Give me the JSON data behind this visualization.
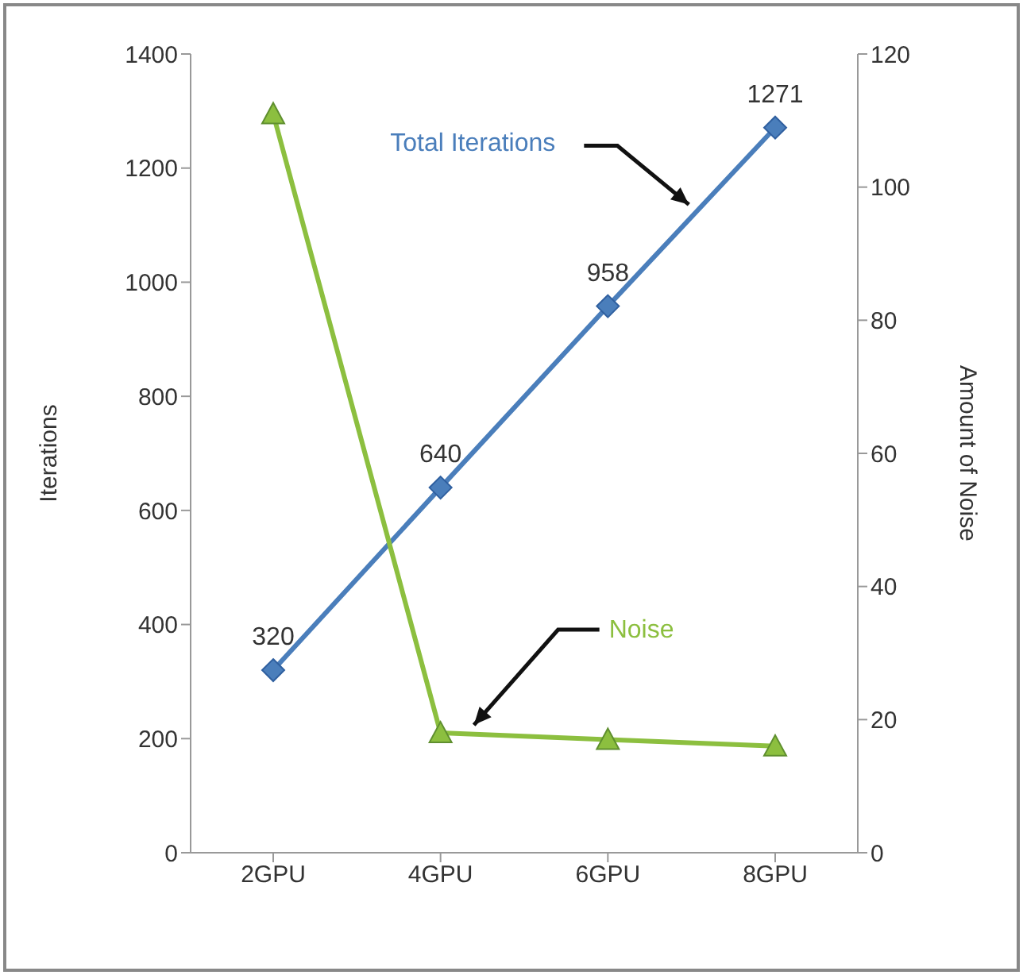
{
  "chart_data": {
    "type": "line",
    "categories": [
      "2GPU",
      "4GPU",
      "6GPU",
      "8GPU"
    ],
    "ylabel": "Iterations",
    "y2label": "Amount of Noise",
    "ylim": [
      0,
      1400
    ],
    "yticks": [
      0,
      200,
      400,
      600,
      800,
      1000,
      1200,
      1400
    ],
    "y2lim": [
      0,
      120
    ],
    "y2ticks": [
      0,
      20,
      40,
      60,
      80,
      100,
      120
    ],
    "series": [
      {
        "name": "Total Iterations",
        "color": "#4a7ebb",
        "values": [
          320,
          640,
          958,
          1271
        ],
        "value_labels": [
          "320",
          "640",
          "958",
          "1271"
        ],
        "marker": "diamond"
      },
      {
        "name": "Noise",
        "color": "#8cbf3f",
        "values": [
          111,
          18,
          17,
          16
        ],
        "axis": "y2",
        "marker": "triangle"
      }
    ]
  }
}
